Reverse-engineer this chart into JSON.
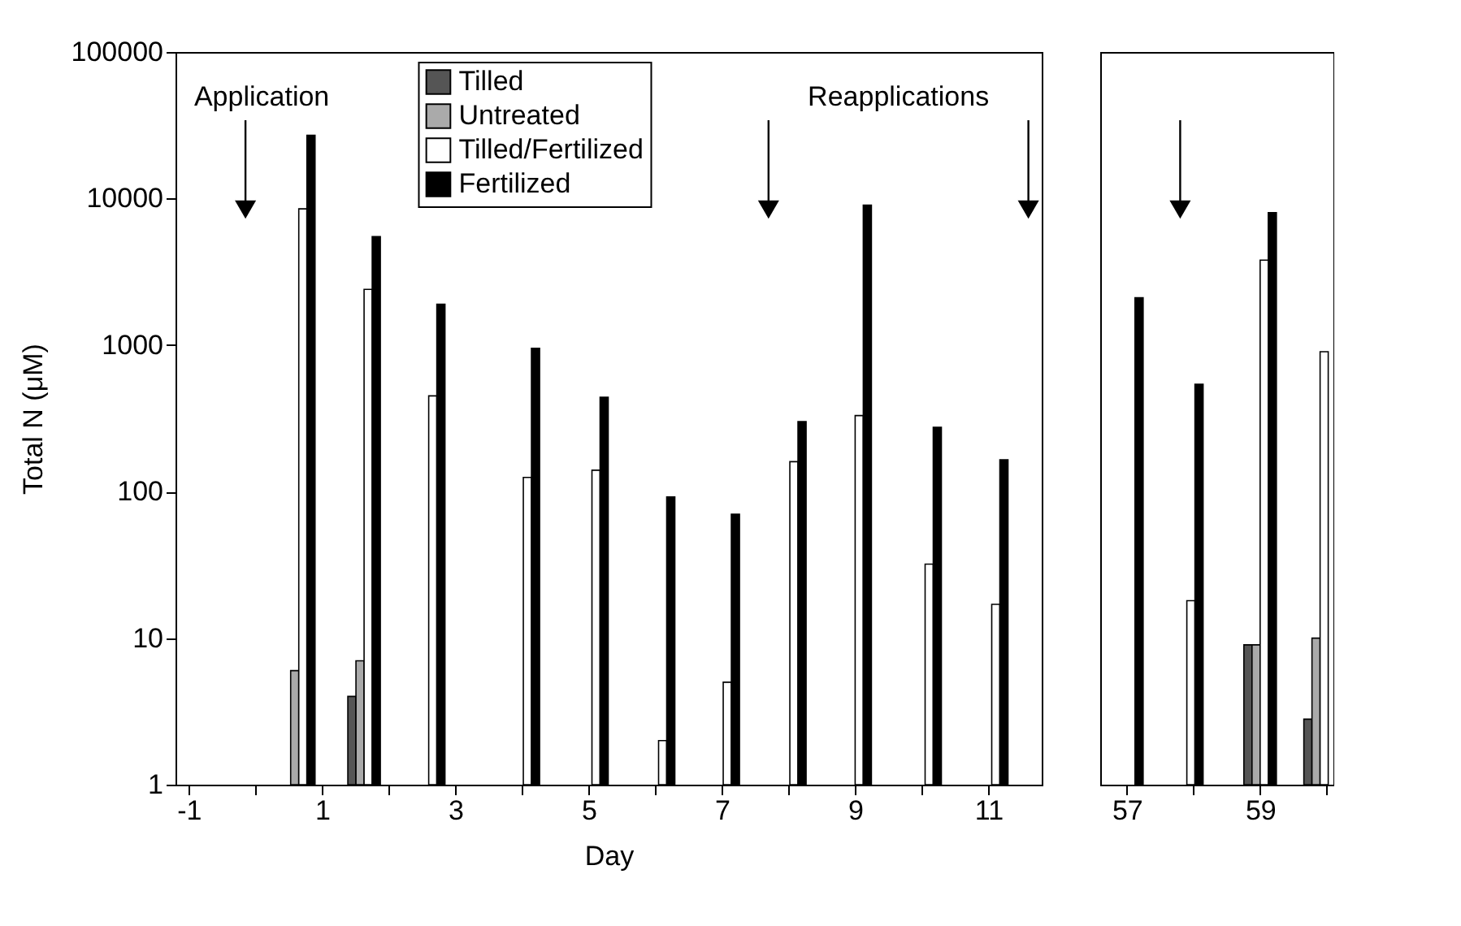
{
  "chart_data": [
    {
      "type": "bar",
      "xlabel": "Day",
      "ylabel": "Total N (μM)",
      "log": true,
      "legend": "top",
      "grid": false,
      "x": [
        0.65,
        1.63,
        2.6,
        4.02,
        5.05,
        6.05,
        7.02,
        8.02,
        9.0,
        10.05,
        11.05
      ],
      "series": [
        {
          "name": "Tilled",
          "color": "#555555",
          "values": [
            null,
            4,
            null,
            null,
            null,
            null,
            null,
            null,
            null,
            null,
            null
          ]
        },
        {
          "name": "Untreated",
          "color": "#aaaaaa",
          "values": [
            6,
            7,
            null,
            null,
            null,
            null,
            null,
            null,
            null,
            null,
            null
          ]
        },
        {
          "name": "Tilled/Fertilized",
          "color": "#ffffff",
          "values": [
            8500,
            2400,
            450,
            125,
            140,
            2,
            5,
            160,
            330,
            32,
            17
          ]
        },
        {
          "name": "Fertilized",
          "color": "#000000",
          "values": [
            27000,
            5500,
            1900,
            950,
            440,
            92,
            70,
            300,
            9000,
            275,
            165
          ]
        }
      ],
      "xlim": [
        -1.2,
        11.8
      ],
      "xticks": [
        -1,
        {
          "value": 0,
          "label": null
        },
        1,
        {
          "value": 2,
          "label": null
        },
        3,
        {
          "value": 4,
          "label": null
        },
        5,
        {
          "value": 6,
          "label": null
        },
        7,
        {
          "value": 8,
          "label": null
        },
        9,
        {
          "value": 10,
          "label": null
        },
        11
      ],
      "ylim": [
        1,
        100000
      ],
      "yticks": [
        1,
        10,
        100,
        1000,
        10000,
        100000
      ],
      "annotations": [
        "Application",
        "Reapplications"
      ],
      "ref_lines": [
        {
          "axis": "x",
          "value": -0.15,
          "label": null
        },
        {
          "axis": "x",
          "value": 7.7,
          "label": null
        },
        {
          "axis": "x",
          "value": 11.6,
          "label": null
        }
      ]
    },
    {
      "type": "bar",
      "log": true,
      "grid": false,
      "tick_labels": "x",
      "x": [
        57,
        57.9,
        59,
        59.9
      ],
      "series": [
        {
          "color": "#555555",
          "values": [
            null,
            null,
            9,
            2.8
          ]
        },
        {
          "color": "#aaaaaa",
          "values": [
            null,
            null,
            9,
            10
          ]
        },
        {
          "color": "#ffffff",
          "values": [
            null,
            18,
            3800,
            900
          ]
        },
        {
          "color": "#000000",
          "values": [
            2100,
            540,
            8000,
            null
          ]
        }
      ],
      "xlim": [
        56.6,
        60.1
      ],
      "xticks": [
        57,
        {
          "value": 58,
          "label": null
        },
        59,
        {
          "value": 60,
          "label": null
        }
      ],
      "ylim": [
        1,
        100000
      ],
      "yticks": [
        1,
        10,
        100,
        1000,
        10000,
        100000
      ],
      "ref_lines": [
        {
          "axis": "x",
          "value": 57.8,
          "label": null
        }
      ]
    }
  ]
}
